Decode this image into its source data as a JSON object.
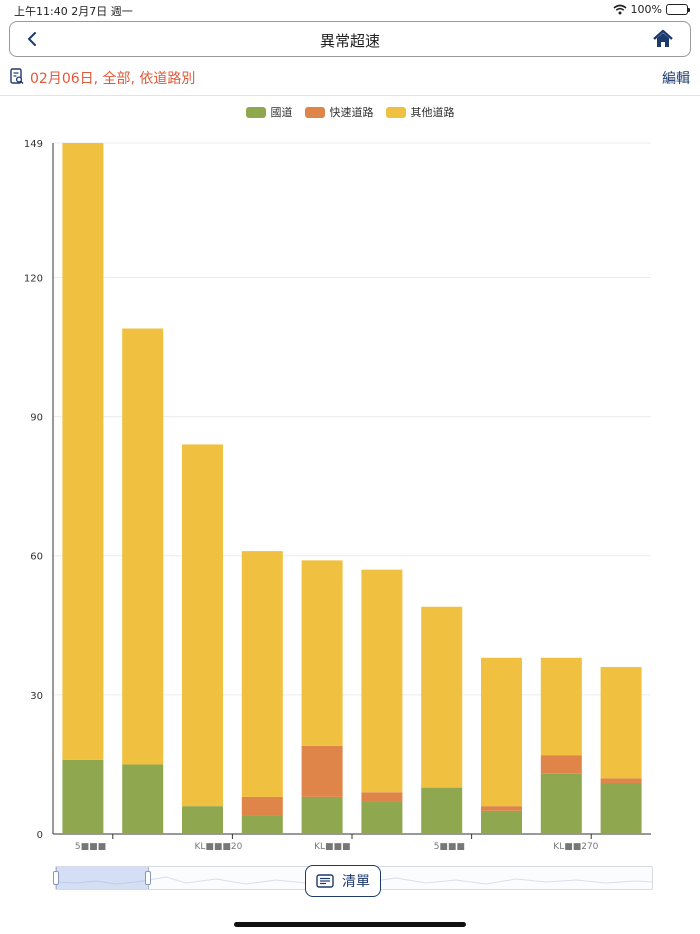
{
  "status_bar": {
    "time": "上午11:40  2月7日 週一",
    "battery": "100%"
  },
  "nav": {
    "title": "異常超速"
  },
  "filter": {
    "text": "02月06日, 全部, 依道路別",
    "edit_label": "編輯"
  },
  "list_button": {
    "label": "清單"
  },
  "colors": {
    "national": "#8fa84f",
    "expressway": "#e0854a",
    "other": "#f0c040",
    "accent": "#1d3a6e",
    "filter_text": "#e05a3a"
  },
  "chart_data": {
    "type": "bar",
    "stacked": true,
    "categories": [
      "5■■■",
      "",
      "KL■■■20",
      "",
      "KL■■■",
      "",
      "5■■■",
      "",
      "KL■■270",
      ""
    ],
    "series": [
      {
        "name": "國道",
        "values": [
          16,
          15,
          6,
          4,
          8,
          7,
          10,
          5,
          13,
          11
        ]
      },
      {
        "name": "快速道路",
        "values": [
          0,
          0,
          0,
          4,
          11,
          2,
          0,
          1,
          4,
          1
        ]
      },
      {
        "name": "其他道路",
        "values": [
          133,
          94,
          78,
          53,
          40,
          48,
          39,
          32,
          21,
          24
        ]
      }
    ],
    "yticks": [
      0,
      30,
      60,
      90,
      120,
      149
    ],
    "ylim": [
      0,
      149
    ],
    "grid": true,
    "legend": "top-center"
  }
}
